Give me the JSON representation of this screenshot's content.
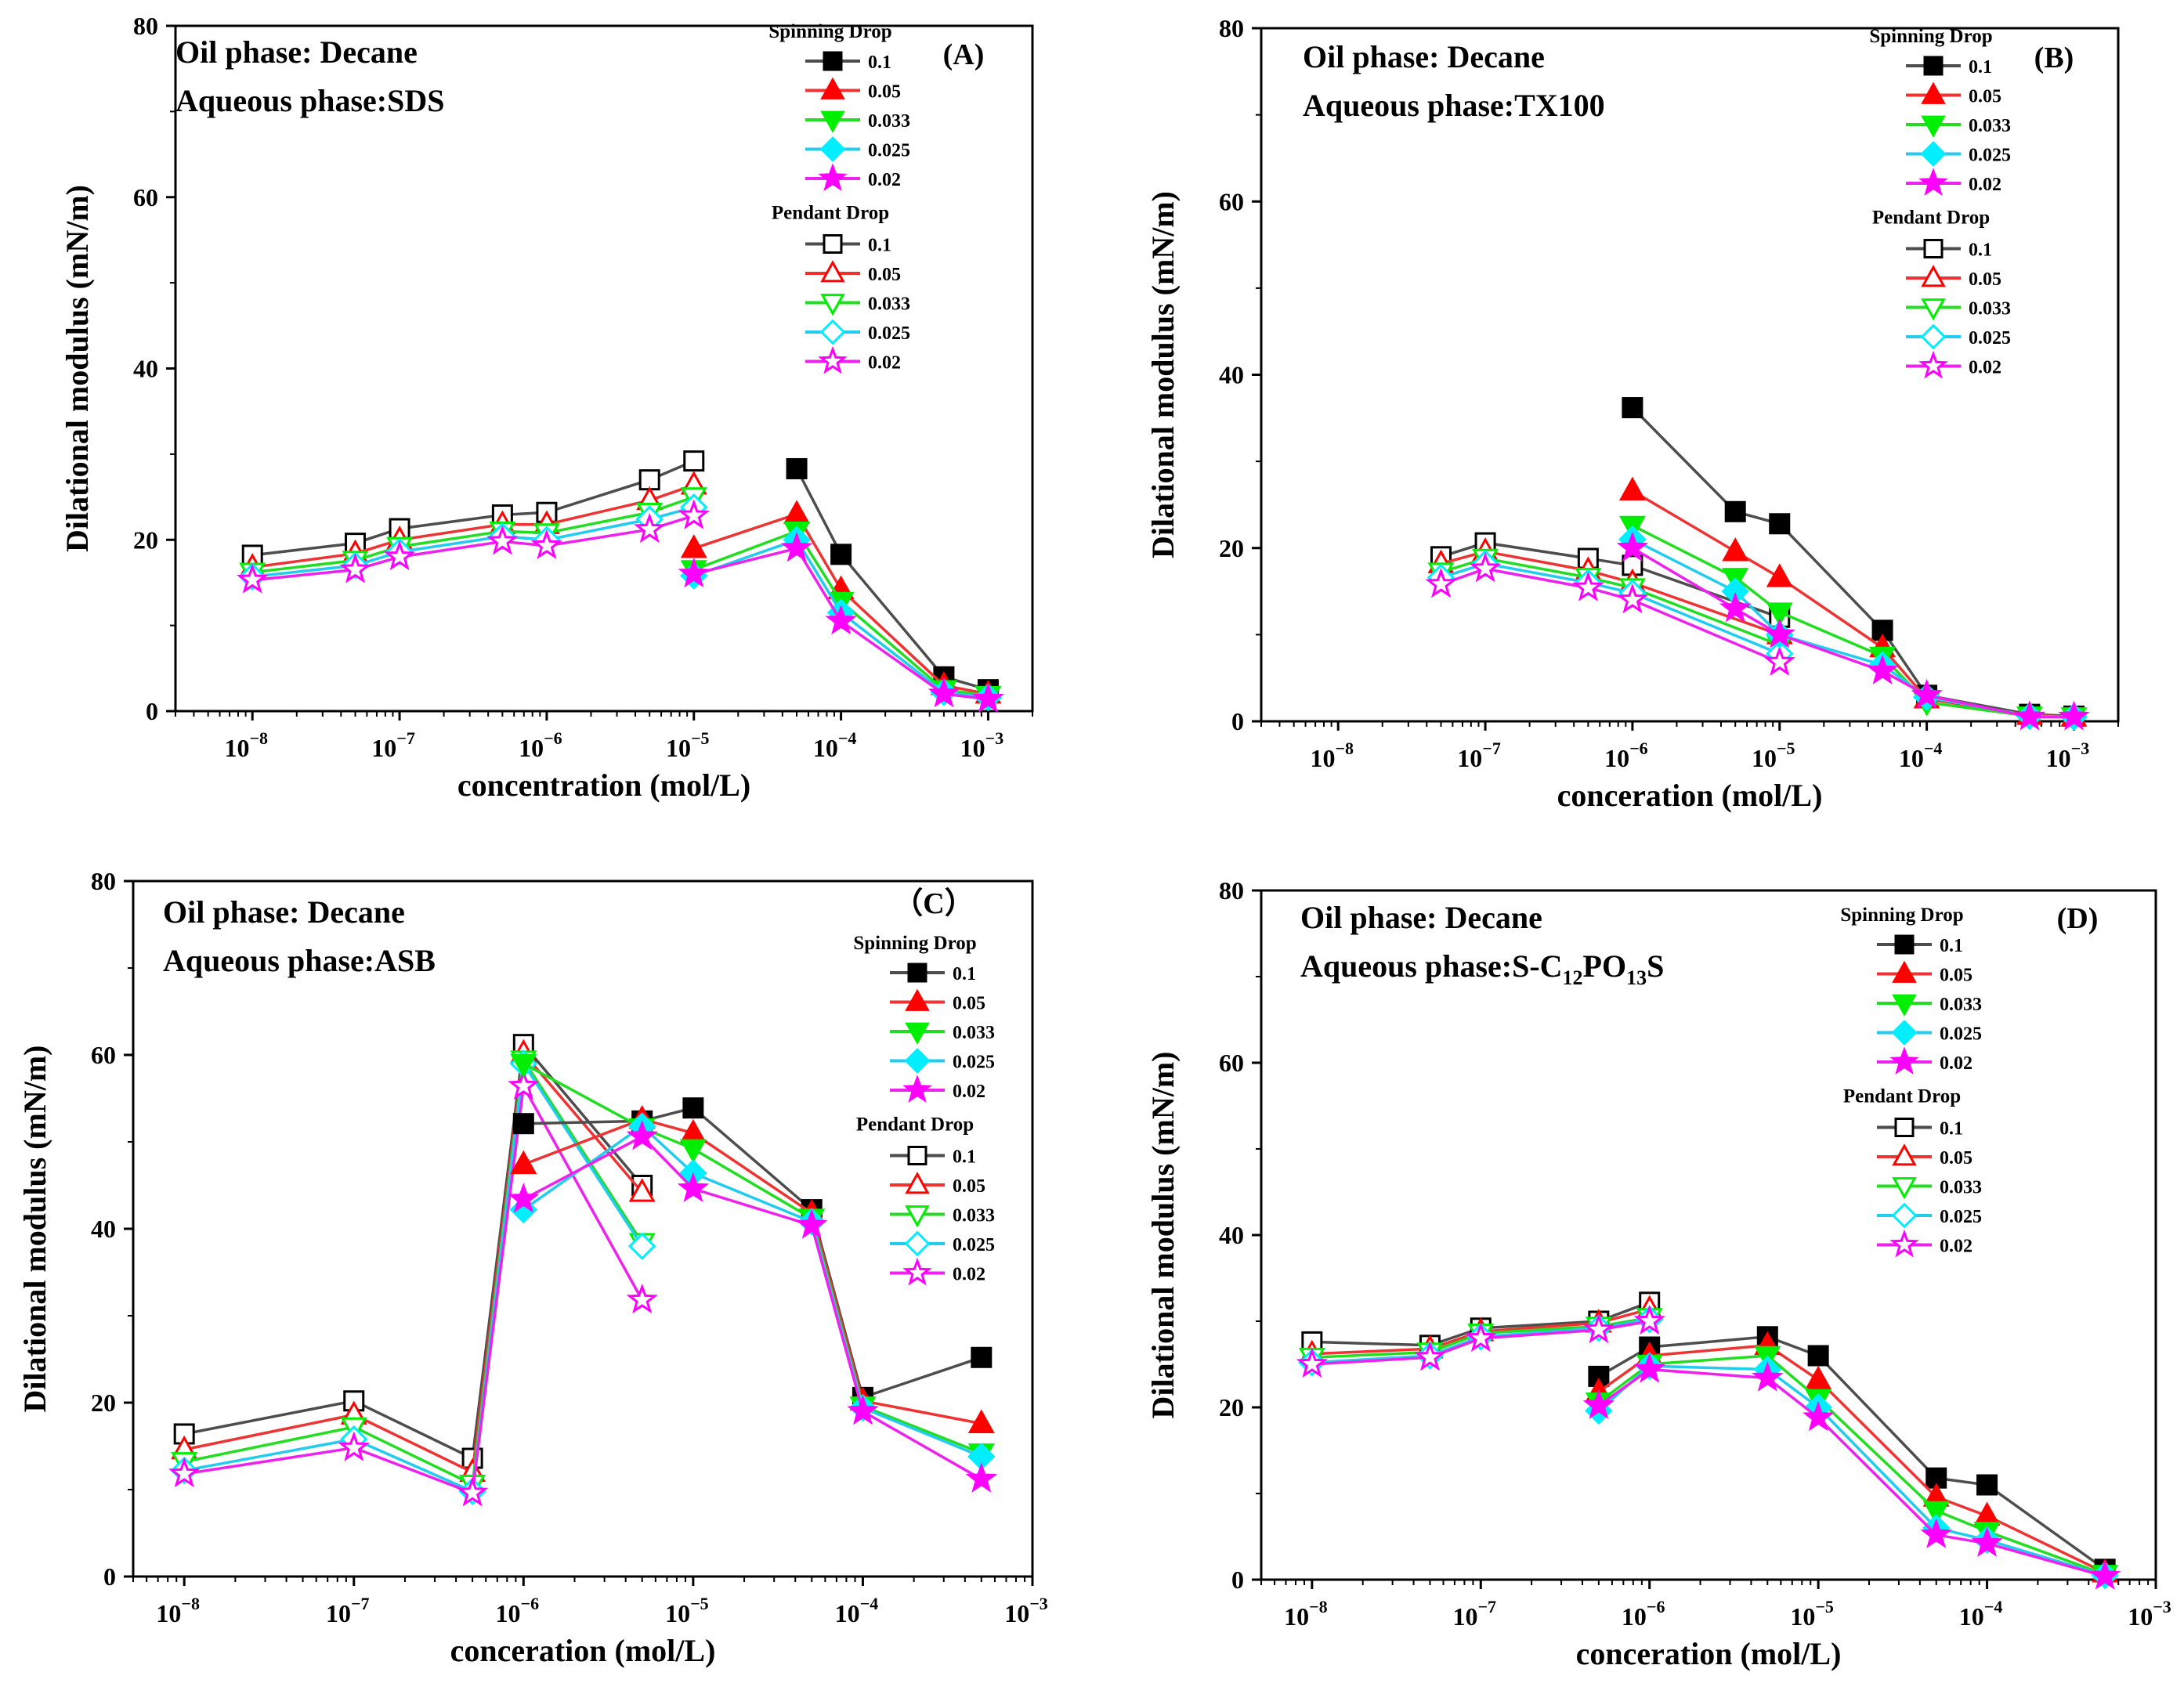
{
  "chart_data": [
    {
      "type": "line",
      "panel_label": "(A)",
      "info": [
        "Oil phase: Decane",
        "Aqueous phase:SDS"
      ],
      "xlabel": "concentration (mol/L)",
      "ylabel": "Dilational modulus (mN/m)",
      "xscale": "log",
      "xlim": [
        3e-09,
        0.002
      ],
      "ylim": [
        0,
        80
      ],
      "xticks": [
        {
          "exp": "-8",
          "v": 1e-08
        },
        {
          "exp": "-7",
          "v": 1e-07
        },
        {
          "exp": "-6",
          "v": 1e-06
        },
        {
          "exp": "-5",
          "v": 1e-05
        },
        {
          "exp": "-4",
          "v": 0.0001
        },
        {
          "exp": "-3",
          "v": 0.001
        }
      ],
      "yticks": [
        "0",
        "20",
        "40",
        "60",
        "80"
      ],
      "legend": {
        "spinning_title": "Spinning Drop",
        "pendant_title": "Pendant Drop",
        "labels": [
          "0.1",
          "0.05",
          "0.033",
          "0.025",
          "0.02"
        ]
      },
      "spinning": {
        "x": [
          1e-05,
          5e-05,
          0.0001,
          0.0005,
          0.001
        ],
        "series": [
          {
            "name": "0.1",
            "values": [
              null,
              28.3,
              18.3,
              4.0,
              2.5
            ]
          },
          {
            "name": "0.05",
            "values": [
              19.0,
              23.0,
              14.2,
              3.0,
              2.0
            ]
          },
          {
            "name": "0.033",
            "values": [
              16.5,
              21.0,
              12.8,
              2.5,
              1.8
            ]
          },
          {
            "name": "0.025",
            "values": [
              15.8,
              20.0,
              11.5,
              2.2,
              1.6
            ]
          },
          {
            "name": "0.02",
            "values": [
              16.0,
              19.0,
              10.5,
              2.0,
              1.4
            ]
          }
        ]
      },
      "pendant": {
        "x": [
          1e-08,
          5e-08,
          1e-07,
          5e-07,
          1e-06,
          5e-06,
          1e-05
        ],
        "series": [
          {
            "name": "0.1",
            "values": [
              18.2,
              19.6,
              21.3,
              22.9,
              23.2,
              27.0,
              29.2
            ]
          },
          {
            "name": "0.05",
            "values": [
              16.8,
              18.4,
              20.0,
              21.8,
              21.8,
              24.6,
              26.4
            ]
          },
          {
            "name": "0.033",
            "values": [
              16.2,
              17.6,
              19.2,
              21.0,
              20.8,
              23.2,
              25.0
            ]
          },
          {
            "name": "0.025",
            "values": [
              15.7,
              17.0,
              18.6,
              20.4,
              20.0,
              22.4,
              23.8
            ]
          },
          {
            "name": "0.02",
            "values": [
              15.3,
              16.5,
              18.0,
              19.8,
              19.3,
              21.2,
              22.8
            ]
          }
        ]
      }
    },
    {
      "type": "line",
      "panel_label": "(B)",
      "info": [
        "Oil phase: Decane",
        "Aqueous phase:TX100"
      ],
      "xlabel": "conceration (mol/L)",
      "ylabel": "Dilational modulus (mN/m)",
      "xscale": "log",
      "xlim": [
        3e-09,
        0.002
      ],
      "ylim": [
        0,
        80
      ],
      "xticks": [
        {
          "exp": "-8",
          "v": 1e-08
        },
        {
          "exp": "-7",
          "v": 1e-07
        },
        {
          "exp": "-6",
          "v": 1e-06
        },
        {
          "exp": "-5",
          "v": 1e-05
        },
        {
          "exp": "-4",
          "v": 0.0001
        },
        {
          "exp": "-3",
          "v": 0.001
        }
      ],
      "yticks": [
        "0",
        "20",
        "40",
        "60",
        "80"
      ],
      "legend": {
        "spinning_title": "Spinning Drop",
        "pendant_title": "Pendant Drop",
        "labels": [
          "0.1",
          "0.05",
          "0.033",
          "0.025",
          "0.02"
        ]
      },
      "spinning": {
        "x": [
          1e-06,
          5e-06,
          1e-05,
          5e-05,
          0.0001,
          0.0005,
          0.001
        ],
        "series": [
          {
            "name": "0.1",
            "values": [
              36.2,
              24.2,
              22.8,
              10.5,
              3.0,
              0.8,
              0.6
            ]
          },
          {
            "name": "0.05",
            "values": [
              26.6,
              19.6,
              16.6,
              8.5,
              2.6,
              0.7,
              0.5
            ]
          },
          {
            "name": "0.033",
            "values": [
              22.6,
              16.6,
              12.6,
              7.5,
              2.2,
              0.6,
              0.5
            ]
          },
          {
            "name": "0.025",
            "values": [
              21.0,
              15.0,
              10.0,
              6.5,
              2.8,
              0.6,
              0.5
            ]
          },
          {
            "name": "0.02",
            "values": [
              20.0,
              13.0,
              10.0,
              5.8,
              3.0,
              0.5,
              0.5
            ]
          }
        ]
      },
      "pendant": {
        "x": [
          5e-08,
          1e-07,
          5e-07,
          1e-06,
          1e-05
        ],
        "series": [
          {
            "name": "0.1",
            "values": [
              19.0,
              20.6,
              18.8,
              18.0,
              12.0
            ]
          },
          {
            "name": "0.05",
            "values": [
              18.2,
              19.6,
              17.4,
              16.0,
              10.0
            ]
          },
          {
            "name": "0.033",
            "values": [
              17.2,
              18.8,
              16.6,
              15.4,
              8.8
            ]
          },
          {
            "name": "0.025",
            "values": [
              16.6,
              18.2,
              16.0,
              14.8,
              7.8
            ]
          },
          {
            "name": "0.02",
            "values": [
              15.8,
              17.6,
              15.4,
              14.0,
              6.8
            ]
          }
        ]
      }
    },
    {
      "type": "line",
      "panel_label": "（C）",
      "info": [
        "Oil phase: Decane",
        "Aqueous phase:ASB"
      ],
      "xlabel": "conceration (mol/L)",
      "ylabel": "Dilational modulus (mN/m)",
      "xscale": "log",
      "xlim": [
        5e-09,
        0.001
      ],
      "ylim": [
        0,
        80
      ],
      "xticks": [
        {
          "exp": "-8",
          "v": 1e-08
        },
        {
          "exp": "-7",
          "v": 1e-07
        },
        {
          "exp": "-6",
          "v": 1e-06
        },
        {
          "exp": "-5",
          "v": 1e-05
        },
        {
          "exp": "-4",
          "v": 0.0001
        },
        {
          "exp": "-3",
          "v": 0.001
        }
      ],
      "yticks": [
        "0",
        "20",
        "40",
        "60",
        "80"
      ],
      "legend": {
        "spinning_title": "Spinning Drop",
        "pendant_title": "Pendant Drop",
        "labels": [
          "0.1",
          "0.05",
          "0.033",
          "0.025",
          "0.02"
        ]
      },
      "spinning": {
        "x": [
          1e-06,
          5e-06,
          1e-05,
          5e-05,
          0.0001,
          0.0005
        ],
        "series": [
          {
            "name": "0.1",
            "values": [
              52.1,
              52.4,
              53.9,
              42.2,
              20.6,
              25.2
            ]
          },
          {
            "name": "0.05",
            "values": [
              47.4,
              52.6,
              51.0,
              41.8,
              20.2,
              17.6
            ]
          },
          {
            "name": "0.033",
            "values": [
              59.0,
              51.6,
              49.2,
              41.2,
              19.6,
              14.2
            ]
          },
          {
            "name": "0.025",
            "values": [
              42.2,
              51.8,
              46.4,
              40.8,
              19.4,
              13.8
            ]
          },
          {
            "name": "0.02",
            "values": [
              43.4,
              50.6,
              44.6,
              40.4,
              19.0,
              11.2
            ]
          }
        ]
      },
      "pendant": {
        "x": [
          1e-08,
          1e-07,
          5e-07,
          1e-06,
          5e-06
        ],
        "series": [
          {
            "name": "0.1",
            "values": [
              16.4,
              20.2,
              13.6,
              61.2,
              45.0
            ]
          },
          {
            "name": "0.05",
            "values": [
              14.6,
              18.6,
              12.0,
              60.2,
              44.2
            ]
          },
          {
            "name": "0.033",
            "values": [
              13.2,
              17.2,
              10.6,
              59.4,
              38.4
            ]
          },
          {
            "name": "0.025",
            "values": [
              12.2,
              15.8,
              9.8,
              59.0,
              38.0
            ]
          },
          {
            "name": "0.02",
            "values": [
              11.8,
              14.8,
              9.6,
              56.4,
              31.8
            ]
          }
        ]
      }
    },
    {
      "type": "line",
      "panel_label": "(D)",
      "info": [
        "Oil phase: Decane",
        "Aqueous phase:S-C12PO13S"
      ],
      "info_parts": {
        "prefix": "Aqueous phase:S-C",
        "s1": "12",
        "mid": "PO",
        "s2": "13",
        "suffix": "S"
      },
      "xlabel": "conceration (mol/L)",
      "ylabel": "Dilational modulus (mN/m)",
      "xscale": "log",
      "xlim": [
        5e-09,
        0.001
      ],
      "ylim": [
        0,
        80
      ],
      "xticks": [
        {
          "exp": "-8",
          "v": 1e-08
        },
        {
          "exp": "-7",
          "v": 1e-07
        },
        {
          "exp": "-6",
          "v": 1e-06
        },
        {
          "exp": "-5",
          "v": 1e-05
        },
        {
          "exp": "-4",
          "v": 0.0001
        },
        {
          "exp": "-3",
          "v": 0.001
        }
      ],
      "yticks": [
        "0",
        "20",
        "40",
        "60",
        "80"
      ],
      "legend": {
        "spinning_title": "Spinning Drop",
        "pendant_title": "Pendant Drop",
        "labels": [
          "0.1",
          "0.05",
          "0.033",
          "0.025",
          "0.02"
        ]
      },
      "spinning": {
        "x": [
          5e-07,
          1e-06,
          5e-06,
          1e-05,
          5e-05,
          0.0001,
          0.0005
        ],
        "series": [
          {
            "name": "0.1",
            "values": [
              23.6,
              27.0,
              28.2,
              26.0,
              11.8,
              11.0,
              1.2
            ]
          },
          {
            "name": "0.05",
            "values": [
              21.8,
              26.0,
              27.2,
              23.2,
              9.6,
              7.4,
              0.8
            ]
          },
          {
            "name": "0.033",
            "values": [
              20.6,
              25.0,
              26.0,
              21.0,
              8.0,
              5.6,
              0.6
            ]
          },
          {
            "name": "0.025",
            "values": [
              19.6,
              24.8,
              24.4,
              20.0,
              6.0,
              4.6,
              0.5
            ]
          },
          {
            "name": "0.02",
            "values": [
              20.2,
              24.4,
              23.4,
              18.8,
              5.2,
              4.2,
              0.4
            ]
          }
        ]
      },
      "pendant": {
        "x": [
          1e-08,
          5e-08,
          1e-07,
          5e-07,
          1e-06
        ],
        "series": [
          {
            "name": "0.1",
            "values": [
              27.6,
              27.2,
              29.2,
              30.0,
              32.2
            ]
          },
          {
            "name": "0.05",
            "values": [
              26.2,
              26.8,
              28.8,
              29.8,
              31.4
            ]
          },
          {
            "name": "0.033",
            "values": [
              25.8,
              26.4,
              28.6,
              29.4,
              30.4
            ]
          },
          {
            "name": "0.025",
            "values": [
              25.2,
              26.0,
              28.2,
              29.2,
              30.2
            ]
          },
          {
            "name": "0.02",
            "values": [
              25.0,
              25.8,
              28.0,
              29.0,
              30.0
            ]
          }
        ]
      }
    }
  ],
  "series_colors": {
    "0.1": "#000000",
    "0.05": "#ff0000",
    "0.033": "#00ee00",
    "0.025": "#00eeff",
    "0.02": "#ff00ff"
  },
  "series_line_colors": {
    "0.1": "#4d4d4d",
    "0.05": "#ee3333",
    "0.033": "#22dd22",
    "0.025": "#22ccee",
    "0.02": "#ee22ee"
  },
  "series_markers": {
    "0.1": "square",
    "0.05": "triangle-up",
    "0.033": "triangle-down",
    "0.025": "diamond",
    "0.02": "star"
  }
}
